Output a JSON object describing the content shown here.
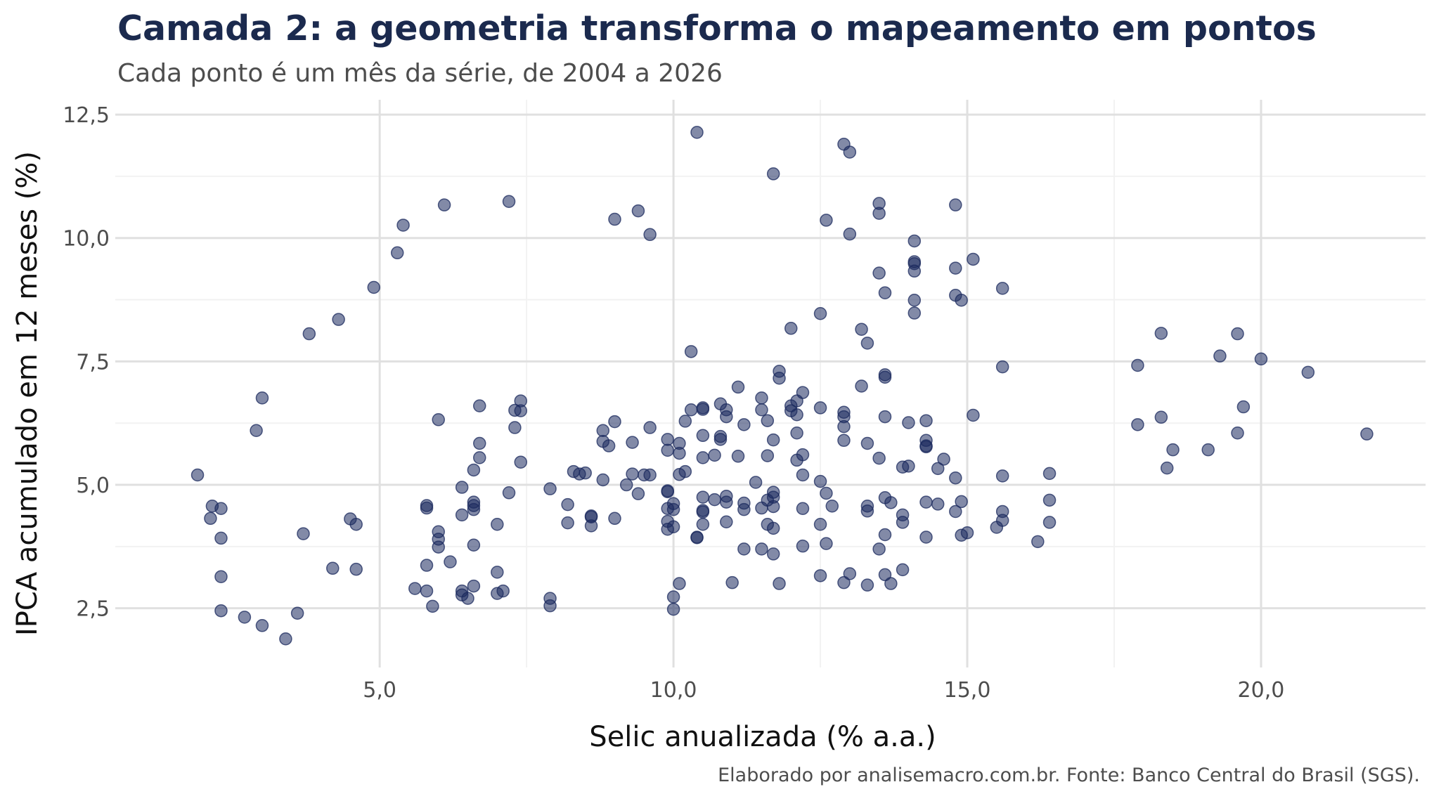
{
  "chart_data": {
    "type": "scatter",
    "title": "Camada 2: a geometria transforma o mapeamento em pontos",
    "subtitle": "Cada ponto é um mês da série, de 2004 a 2026",
    "xlabel": "Selic anualizada (% a.a.)",
    "ylabel": "IPCA acumulado em 12 meses (%)",
    "caption": "Elaborado por analisemacro.com.br. Fonte: Banco Central do Brasil (SGS).",
    "xlim": [
      0.5,
      22.8
    ],
    "ylim": [
      1.3,
      12.8
    ],
    "x_ticks": [
      "5,0",
      "10,0",
      "15,0",
      "20,0"
    ],
    "x_tick_values": [
      5,
      10,
      15,
      20
    ],
    "y_ticks": [
      "2,5",
      "5,0",
      "7,5",
      "10,0",
      "12,5"
    ],
    "y_tick_values": [
      2.5,
      5,
      7.5,
      10,
      12.5
    ],
    "grid": true,
    "legend": "none",
    "point_color": "#1b2a5e",
    "point_opacity": 0.55,
    "points": [
      [
        1.9,
        5.2
      ],
      [
        2.15,
        4.57
      ],
      [
        2.12,
        4.32
      ],
      [
        2.3,
        4.52
      ],
      [
        2.3,
        3.92
      ],
      [
        2.3,
        3.14
      ],
      [
        2.3,
        2.45
      ],
      [
        2.7,
        2.32
      ],
      [
        3.0,
        2.15
      ],
      [
        3.4,
        1.88
      ],
      [
        2.9,
        6.1
      ],
      [
        3.0,
        6.76
      ],
      [
        3.8,
        8.06
      ],
      [
        4.3,
        8.35
      ],
      [
        4.9,
        9.0
      ],
      [
        5.3,
        9.7
      ],
      [
        5.4,
        10.26
      ],
      [
        6.1,
        10.67
      ],
      [
        3.6,
        2.4
      ],
      [
        3.7,
        4.01
      ],
      [
        4.2,
        3.31
      ],
      [
        4.5,
        4.31
      ],
      [
        4.6,
        4.2
      ],
      [
        4.6,
        3.29
      ],
      [
        5.6,
        2.9
      ],
      [
        5.8,
        2.85
      ],
      [
        5.8,
        3.37
      ],
      [
        5.8,
        4.58
      ],
      [
        5.8,
        4.53
      ],
      [
        5.9,
        2.54
      ],
      [
        6.0,
        3.74
      ],
      [
        6.0,
        3.9
      ],
      [
        6.0,
        4.05
      ],
      [
        6.0,
        6.32
      ],
      [
        6.2,
        3.44
      ],
      [
        6.4,
        2.85
      ],
      [
        6.4,
        2.77
      ],
      [
        6.4,
        4.39
      ],
      [
        6.4,
        4.95
      ],
      [
        6.5,
        2.7
      ],
      [
        6.6,
        2.95
      ],
      [
        6.6,
        3.78
      ],
      [
        6.6,
        4.5
      ],
      [
        6.6,
        4.58
      ],
      [
        6.6,
        4.65
      ],
      [
        6.6,
        5.3
      ],
      [
        6.7,
        5.55
      ],
      [
        6.7,
        5.84
      ],
      [
        6.7,
        6.6
      ],
      [
        7.0,
        3.23
      ],
      [
        7.0,
        2.8
      ],
      [
        7.0,
        4.2
      ],
      [
        7.1,
        2.85
      ],
      [
        7.2,
        4.84
      ],
      [
        7.2,
        10.74
      ],
      [
        7.3,
        6.16
      ],
      [
        7.3,
        6.51
      ],
      [
        7.4,
        6.5
      ],
      [
        7.4,
        6.7
      ],
      [
        7.4,
        5.46
      ],
      [
        7.9,
        2.55
      ],
      [
        7.9,
        2.7
      ],
      [
        7.9,
        4.92
      ],
      [
        8.2,
        4.6
      ],
      [
        8.2,
        4.23
      ],
      [
        8.3,
        5.27
      ],
      [
        8.4,
        5.22
      ],
      [
        8.5,
        5.24
      ],
      [
        8.6,
        4.35
      ],
      [
        8.6,
        4.37
      ],
      [
        8.6,
        4.17
      ],
      [
        8.8,
        6.1
      ],
      [
        8.8,
        5.1
      ],
      [
        8.8,
        5.88
      ],
      [
        8.9,
        5.79
      ],
      [
        9.0,
        6.28
      ],
      [
        9.0,
        10.38
      ],
      [
        9.0,
        4.32
      ],
      [
        9.2,
        5.0
      ],
      [
        9.3,
        5.22
      ],
      [
        9.3,
        5.86
      ],
      [
        9.4,
        10.55
      ],
      [
        9.4,
        4.82
      ],
      [
        9.5,
        5.2
      ],
      [
        9.6,
        5.2
      ],
      [
        9.6,
        6.16
      ],
      [
        9.6,
        10.07
      ],
      [
        9.9,
        4.86
      ],
      [
        9.9,
        4.88
      ],
      [
        9.9,
        5.92
      ],
      [
        9.9,
        5.7
      ],
      [
        9.9,
        4.52
      ],
      [
        9.9,
        4.26
      ],
      [
        9.9,
        4.1
      ],
      [
        10.0,
        4.62
      ],
      [
        10.0,
        4.5
      ],
      [
        10.0,
        4.15
      ],
      [
        10.0,
        2.73
      ],
      [
        10.0,
        2.48
      ],
      [
        10.1,
        3.0
      ],
      [
        10.1,
        5.64
      ],
      [
        10.1,
        5.84
      ],
      [
        10.1,
        5.21
      ],
      [
        10.2,
        5.27
      ],
      [
        10.2,
        6.29
      ],
      [
        10.3,
        7.7
      ],
      [
        10.3,
        6.52
      ],
      [
        10.4,
        12.14
      ],
      [
        10.5,
        6.56
      ],
      [
        10.5,
        6.53
      ],
      [
        10.5,
        6.0
      ],
      [
        10.5,
        5.55
      ],
      [
        10.5,
        4.75
      ],
      [
        10.5,
        4.45
      ],
      [
        10.5,
        4.48
      ],
      [
        10.5,
        4.2
      ],
      [
        10.4,
        3.93
      ],
      [
        10.4,
        3.94
      ],
      [
        10.7,
        4.7
      ],
      [
        10.7,
        5.6
      ],
      [
        10.8,
        5.98
      ],
      [
        10.8,
        5.92
      ],
      [
        10.8,
        6.64
      ],
      [
        10.9,
        6.52
      ],
      [
        10.9,
        6.38
      ],
      [
        10.9,
        4.77
      ],
      [
        10.9,
        4.65
      ],
      [
        10.9,
        4.25
      ],
      [
        11.0,
        3.02
      ],
      [
        11.1,
        6.98
      ],
      [
        11.1,
        5.58
      ],
      [
        11.2,
        6.22
      ],
      [
        11.2,
        4.63
      ],
      [
        11.2,
        4.5
      ],
      [
        11.2,
        3.7
      ],
      [
        11.4,
        5.05
      ],
      [
        11.5,
        6.76
      ],
      [
        11.5,
        6.52
      ],
      [
        11.5,
        4.53
      ],
      [
        11.6,
        6.3
      ],
      [
        11.6,
        5.59
      ],
      [
        11.6,
        4.69
      ],
      [
        11.6,
        4.2
      ],
      [
        11.5,
        3.7
      ],
      [
        11.7,
        11.3
      ],
      [
        11.7,
        4.85
      ],
      [
        11.7,
        4.75
      ],
      [
        11.7,
        4.56
      ],
      [
        11.7,
        4.12
      ],
      [
        11.7,
        3.6
      ],
      [
        11.7,
        5.91
      ],
      [
        11.8,
        7.3
      ],
      [
        11.8,
        7.16
      ],
      [
        11.8,
        3.0
      ],
      [
        12.0,
        8.17
      ],
      [
        12.0,
        6.6
      ],
      [
        12.0,
        6.5
      ],
      [
        12.1,
        6.7
      ],
      [
        12.1,
        6.42
      ],
      [
        12.1,
        6.05
      ],
      [
        12.1,
        5.5
      ],
      [
        12.2,
        6.87
      ],
      [
        12.2,
        5.61
      ],
      [
        12.2,
        5.2
      ],
      [
        12.2,
        4.52
      ],
      [
        12.2,
        3.76
      ],
      [
        12.5,
        8.47
      ],
      [
        12.5,
        6.56
      ],
      [
        12.5,
        5.07
      ],
      [
        12.5,
        4.2
      ],
      [
        12.5,
        3.16
      ],
      [
        12.6,
        10.36
      ],
      [
        12.6,
        4.83
      ],
      [
        12.6,
        3.81
      ],
      [
        12.7,
        4.57
      ],
      [
        12.9,
        11.9
      ],
      [
        12.9,
        6.47
      ],
      [
        12.9,
        6.38
      ],
      [
        12.9,
        6.18
      ],
      [
        12.9,
        5.9
      ],
      [
        12.9,
        3.02
      ],
      [
        13.0,
        11.74
      ],
      [
        13.0,
        10.08
      ],
      [
        13.0,
        3.2
      ],
      [
        13.2,
        8.15
      ],
      [
        13.2,
        7.0
      ],
      [
        13.3,
        7.87
      ],
      [
        13.3,
        5.84
      ],
      [
        13.3,
        4.57
      ],
      [
        13.3,
        4.47
      ],
      [
        13.3,
        2.97
      ],
      [
        13.5,
        10.7
      ],
      [
        13.5,
        10.5
      ],
      [
        13.5,
        9.29
      ],
      [
        13.5,
        5.54
      ],
      [
        13.5,
        3.7
      ],
      [
        13.6,
        8.89
      ],
      [
        13.6,
        7.23
      ],
      [
        13.6,
        7.18
      ],
      [
        13.6,
        6.38
      ],
      [
        13.6,
        4.74
      ],
      [
        13.6,
        3.99
      ],
      [
        13.6,
        3.18
      ],
      [
        13.7,
        4.64
      ],
      [
        13.7,
        3.0
      ],
      [
        13.9,
        5.36
      ],
      [
        13.9,
        4.39
      ],
      [
        13.9,
        4.24
      ],
      [
        13.9,
        3.28
      ],
      [
        14.0,
        6.26
      ],
      [
        14.0,
        5.38
      ],
      [
        14.1,
        9.94
      ],
      [
        14.1,
        9.52
      ],
      [
        14.1,
        9.48
      ],
      [
        14.1,
        9.33
      ],
      [
        14.1,
        8.74
      ],
      [
        14.1,
        8.48
      ],
      [
        14.3,
        6.3
      ],
      [
        14.3,
        5.9
      ],
      [
        14.3,
        5.79
      ],
      [
        14.3,
        5.77
      ],
      [
        14.3,
        4.65
      ],
      [
        14.3,
        3.94
      ],
      [
        14.5,
        5.33
      ],
      [
        14.5,
        4.61
      ],
      [
        14.6,
        5.52
      ],
      [
        14.8,
        10.67
      ],
      [
        14.8,
        9.39
      ],
      [
        14.8,
        8.84
      ],
      [
        14.8,
        5.14
      ],
      [
        14.8,
        4.46
      ],
      [
        14.9,
        8.74
      ],
      [
        14.9,
        4.66
      ],
      [
        14.9,
        3.98
      ],
      [
        15.0,
        4.03
      ],
      [
        15.1,
        9.57
      ],
      [
        15.1,
        6.41
      ],
      [
        15.5,
        4.14
      ],
      [
        15.6,
        8.98
      ],
      [
        15.6,
        7.39
      ],
      [
        15.6,
        5.18
      ],
      [
        15.6,
        4.46
      ],
      [
        15.6,
        4.28
      ],
      [
        16.2,
        3.85
      ],
      [
        16.4,
        5.23
      ],
      [
        16.4,
        4.69
      ],
      [
        16.4,
        4.24
      ],
      [
        17.9,
        7.42
      ],
      [
        17.9,
        6.22
      ],
      [
        18.3,
        8.07
      ],
      [
        18.3,
        6.37
      ],
      [
        18.4,
        5.34
      ],
      [
        18.5,
        5.71
      ],
      [
        19.1,
        5.71
      ],
      [
        19.3,
        7.61
      ],
      [
        19.6,
        8.06
      ],
      [
        19.6,
        6.05
      ],
      [
        19.7,
        6.58
      ],
      [
        20.0,
        7.55
      ],
      [
        20.8,
        7.28
      ],
      [
        21.8,
        6.03
      ]
    ]
  }
}
